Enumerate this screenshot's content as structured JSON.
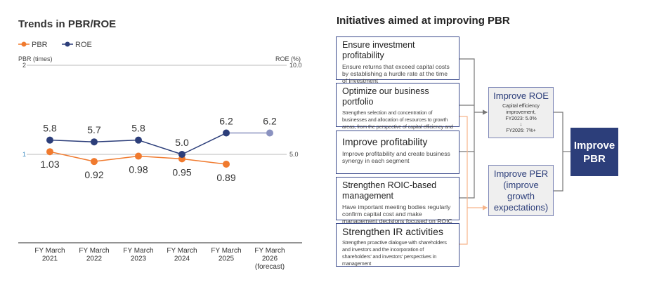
{
  "chart_data": {
    "type": "line",
    "title": "Trends in PBR/ROE",
    "categories": [
      "FY March 2021",
      "FY March 2022",
      "FY March 2023",
      "FY March 2024",
      "FY March 2025",
      "FY March 2026 (forecast)"
    ],
    "category_lines": [
      [
        "FY March",
        "2021"
      ],
      [
        "FY March",
        "2022"
      ],
      [
        "FY March",
        "2023"
      ],
      [
        "FY March",
        "2024"
      ],
      [
        "FY March",
        "2025"
      ],
      [
        "FY March",
        "2026",
        "(forecast)"
      ]
    ],
    "left_axis": {
      "label": "PBR (times)",
      "ticks": [
        "2",
        "1"
      ],
      "range": [
        0,
        2
      ]
    },
    "right_axis": {
      "label": "ROE (%)",
      "ticks": [
        "10.0",
        "5.0"
      ],
      "range": [
        0,
        10
      ]
    },
    "series": [
      {
        "name": "PBR",
        "axis": "left",
        "color": "#f07a2e",
        "values": [
          1.03,
          0.92,
          0.98,
          0.95,
          0.89,
          null
        ],
        "labels": [
          "1.03",
          "0.92",
          "0.98",
          "0.95",
          "0.89",
          ""
        ]
      },
      {
        "name": "ROE",
        "axis": "right",
        "color": "#2c3e7a",
        "forecast_color": "#8a92c0",
        "values": [
          5.8,
          5.7,
          5.8,
          5.0,
          6.2,
          6.2
        ],
        "labels": [
          "5.8",
          "5.7",
          "5.8",
          "5.0",
          "6.2",
          "6.2"
        ]
      }
    ],
    "legend": "top-left",
    "grid": true
  },
  "diagram": {
    "title": "Initiatives aimed at improving PBR",
    "initiatives": [
      {
        "heading": "Ensure investment profitability",
        "text": "Ensure returns that exceed capital costs by establishing a hurdle rate at the time of investment"
      },
      {
        "heading": "Optimize our business portfolio",
        "text": "Strengthen selection and concentration of businesses and allocation of resources to growth areas, from the perspective of capital efficiency and growth potential"
      },
      {
        "heading": "Improve profitability",
        "text": "Improve profitability and create business synergy in each segment"
      },
      {
        "heading": "Strengthen ROIC-based management",
        "text": "Have important meeting bodies regularly confirm capital cost and make management decisions focused on ROIC"
      },
      {
        "heading": "Strengthen IR activities",
        "text": "Strengthen proactive dialogue with shareholders and investors and the incorporation of shareholders' and investors' perspectives in management"
      }
    ],
    "roe": {
      "title": "Improve ROE",
      "line1": "Capital efficiency improvement,",
      "line2": "FY2023: 5.0%",
      "arrow": "↓",
      "line3": "FY2026: 7%+"
    },
    "per": {
      "title": "Improve PER (improve growth expectations)"
    },
    "pbr": {
      "title": "Improve PBR"
    },
    "colors": {
      "navy": "#2c3e7a",
      "orange": "#f6b48a",
      "gray": "#777777"
    }
  }
}
